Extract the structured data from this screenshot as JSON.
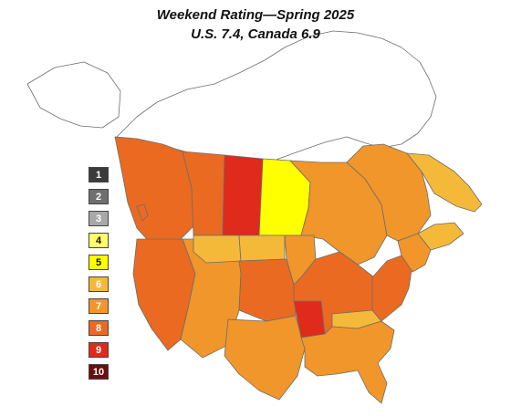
{
  "title": "Weekend Rating—Spring 2025",
  "subtitle": "U.S. 7.4, Canada 6.9",
  "colors": {
    "1": "#3b3b3b",
    "2": "#6f6f6f",
    "3": "#a8a8a8",
    "4": "#ffff66",
    "5": "#ffff00",
    "6": "#f5b93a",
    "7": "#f0962a",
    "8": "#ea6a22",
    "9": "#e02a1c",
    "10": "#6a0f0f",
    "none": "#ffffff",
    "border": "#6d6d6d"
  },
  "legend": [
    {
      "label": "1",
      "color": "#3b3b3b",
      "text_color": "#ffffff"
    },
    {
      "label": "2",
      "color": "#6f6f6f",
      "text_color": "#ffffff"
    },
    {
      "label": "3",
      "color": "#a8a8a8",
      "text_color": "#ffffff"
    },
    {
      "label": "4",
      "color": "#ffff66",
      "text_color": "#111111"
    },
    {
      "label": "5",
      "color": "#ffff00",
      "text_color": "#111111"
    },
    {
      "label": "6",
      "color": "#f5b93a",
      "text_color": "#ffffff"
    },
    {
      "label": "7",
      "color": "#f0962a",
      "text_color": "#ffffff"
    },
    {
      "label": "8",
      "color": "#ea6a22",
      "text_color": "#ffffff"
    },
    {
      "label": "9",
      "color": "#e02a1c",
      "text_color": "#ffffff"
    },
    {
      "label": "10",
      "color": "#6a0f0f",
      "text_color": "#ffffff"
    }
  ],
  "regions": [
    {
      "name": "canada-north",
      "rating": "none"
    },
    {
      "name": "alaska",
      "rating": "none"
    },
    {
      "name": "british-columbia",
      "rating": "8"
    },
    {
      "name": "alberta",
      "rating": "8"
    },
    {
      "name": "saskatchewan",
      "rating": "9"
    },
    {
      "name": "manitoba",
      "rating": "5"
    },
    {
      "name": "ontario",
      "rating": "7"
    },
    {
      "name": "quebec",
      "rating": "7"
    },
    {
      "name": "newfoundland-labrador",
      "rating": "6"
    },
    {
      "name": "maritimes",
      "rating": "6"
    },
    {
      "name": "us-west",
      "rating": "8"
    },
    {
      "name": "us-mountain",
      "rating": "7"
    },
    {
      "name": "montana",
      "rating": "6"
    },
    {
      "name": "north-dakota",
      "rating": "6"
    },
    {
      "name": "us-plains",
      "rating": "8"
    },
    {
      "name": "minnesota",
      "rating": "7"
    },
    {
      "name": "texas",
      "rating": "7"
    },
    {
      "name": "missouri",
      "rating": "9"
    },
    {
      "name": "us-midwest",
      "rating": "8"
    },
    {
      "name": "kentucky",
      "rating": "6"
    },
    {
      "name": "us-southeast",
      "rating": "7"
    },
    {
      "name": "us-northeast",
      "rating": "8"
    },
    {
      "name": "new-england",
      "rating": "7"
    },
    {
      "name": "vancouver-island",
      "rating": "8"
    }
  ]
}
